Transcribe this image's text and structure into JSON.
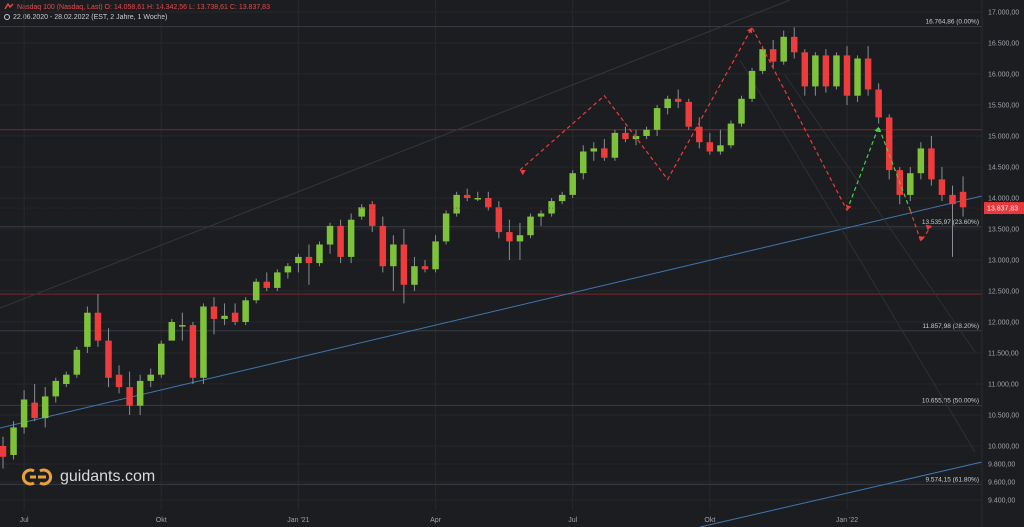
{
  "header": {
    "title_line": "Nasdaq 100 (Nasdaq, Last) O: 14.058,61 H: 14.342,56 L: 13.738,61 C: 13.837,83",
    "range_line": "22.06.2020 - 28.02.2022 (EST, 2 Jahre, 1 Woche)"
  },
  "logo": {
    "text": "guidants.com"
  },
  "colors": {
    "background": "#1c1d20",
    "up": "#7dc23a",
    "down": "#ee3b3b",
    "price_tag": "#e8383b",
    "fib_line": "#3a3d44",
    "resistance": "#7a2a2a",
    "trendline": "#3e78b0"
  },
  "chart_data": {
    "type": "candlestick",
    "instrument": "Nasdaq 100 (Nasdaq, Last)",
    "period": "22.06.2020 - 28.02.2022",
    "ylim": [
      9200,
      17200
    ],
    "y_ticks": [
      9400,
      9600,
      9800,
      10000,
      10500,
      11000,
      11500,
      12000,
      12500,
      13000,
      13500,
      14000,
      14500,
      15000,
      15500,
      16000,
      16500,
      17000
    ],
    "y_tick_labels": [
      "9.400,00",
      "9.600,00",
      "9.800,00",
      "10.000,00",
      "10.500,00",
      "11.000,00",
      "11.500,00",
      "12.000,00",
      "12.500,00",
      "13.000,00",
      "13.500,00",
      "14.000,00",
      "14.500,00",
      "15.000,00",
      "15.500,00",
      "16.000,00",
      "16.500,00",
      "17.000,00"
    ],
    "x_ticks": [
      {
        "week": 2,
        "label": "Jul"
      },
      {
        "week": 15,
        "label": "Okt"
      },
      {
        "week": 28,
        "label": "Jan '21"
      },
      {
        "week": 41,
        "label": "Apr"
      },
      {
        "week": 54,
        "label": "Jul"
      },
      {
        "week": 67,
        "label": "Okt"
      },
      {
        "week": 80,
        "label": "Jan '22"
      }
    ],
    "last_price": {
      "value": 13837.83,
      "label": "13.837,83"
    },
    "fibonacci": [
      {
        "value": 16764.86,
        "label": "16.764,86 (0.00%)"
      },
      {
        "value": 13535.97,
        "label": "13.535,97 (23.60%)"
      },
      {
        "value": 11857.98,
        "label": "11.857,98 (38.20%)"
      },
      {
        "value": 10655.05,
        "label": "10.655,05 (50.00%)"
      },
      {
        "value": 9574.15,
        "label": "9.574,15 (61.80%)"
      }
    ],
    "horizontal_lines": [
      15100,
      12450
    ],
    "candles": [
      [
        10000,
        10150,
        9750,
        9880
      ],
      [
        9900,
        10400,
        9850,
        10300
      ],
      [
        10300,
        10900,
        10200,
        10750
      ],
      [
        10700,
        11000,
        10400,
        10450
      ],
      [
        10450,
        10950,
        10300,
        10800
      ],
      [
        10800,
        11100,
        10700,
        11050
      ],
      [
        11000,
        11200,
        10950,
        11150
      ],
      [
        11150,
        11600,
        11100,
        11550
      ],
      [
        11600,
        12250,
        11500,
        12150
      ],
      [
        12150,
        12450,
        11600,
        11700
      ],
      [
        11700,
        11900,
        10950,
        11100
      ],
      [
        11150,
        11300,
        10850,
        10950
      ],
      [
        10950,
        11200,
        10500,
        10650
      ],
      [
        10650,
        11150,
        10500,
        11050
      ],
      [
        11050,
        11250,
        10950,
        11150
      ],
      [
        11150,
        11700,
        11100,
        11650
      ],
      [
        11700,
        12050,
        11700,
        12000
      ],
      [
        11950,
        12150,
        11700,
        11950
      ],
      [
        11950,
        12000,
        11000,
        11100
      ],
      [
        11100,
        12300,
        11000,
        12250
      ],
      [
        12250,
        12400,
        11800,
        12050
      ],
      [
        12050,
        12300,
        11950,
        12100
      ],
      [
        12150,
        12300,
        11950,
        12000
      ],
      [
        12000,
        12400,
        11950,
        12350
      ],
      [
        12350,
        12700,
        12300,
        12650
      ],
      [
        12650,
        12800,
        12500,
        12550
      ],
      [
        12550,
        12850,
        12500,
        12800
      ],
      [
        12800,
        12950,
        12700,
        12900
      ],
      [
        12950,
        13100,
        12800,
        13050
      ],
      [
        13050,
        13250,
        12600,
        12950
      ],
      [
        12950,
        13300,
        12900,
        13250
      ],
      [
        13250,
        13600,
        13100,
        13550
      ],
      [
        13550,
        13650,
        12950,
        13050
      ],
      [
        13050,
        13750,
        12950,
        13650
      ],
      [
        13700,
        13900,
        13650,
        13850
      ],
      [
        13900,
        13950,
        13450,
        13550
      ],
      [
        13550,
        13700,
        12800,
        12900
      ],
      [
        12900,
        13400,
        12500,
        13250
      ],
      [
        13250,
        13500,
        12300,
        12600
      ],
      [
        12600,
        13050,
        12500,
        12900
      ],
      [
        12900,
        13000,
        12800,
        12850
      ],
      [
        12850,
        13400,
        12800,
        13300
      ],
      [
        13300,
        13800,
        13250,
        13750
      ],
      [
        13750,
        14100,
        13700,
        14050
      ],
      [
        14050,
        14150,
        13950,
        14000
      ],
      [
        14000,
        14100,
        13950,
        14000
      ],
      [
        14000,
        14100,
        13800,
        13850
      ],
      [
        13850,
        13950,
        13350,
        13450
      ],
      [
        13450,
        13650,
        13000,
        13300
      ],
      [
        13300,
        13600,
        13000,
        13400
      ],
      [
        13400,
        13750,
        13350,
        13700
      ],
      [
        13700,
        13800,
        13550,
        13750
      ],
      [
        13750,
        14000,
        13700,
        13950
      ],
      [
        13950,
        14100,
        13900,
        14050
      ],
      [
        14050,
        14450,
        14000,
        14400
      ],
      [
        14400,
        14850,
        14300,
        14750
      ],
      [
        14750,
        14900,
        14600,
        14800
      ],
      [
        14800,
        14950,
        14600,
        14650
      ],
      [
        14650,
        15100,
        14600,
        15050
      ],
      [
        15050,
        15150,
        14900,
        14950
      ],
      [
        14950,
        15100,
        14850,
        15000
      ],
      [
        15000,
        15150,
        14950,
        15100
      ],
      [
        15100,
        15500,
        15000,
        15450
      ],
      [
        15450,
        15650,
        15350,
        15600
      ],
      [
        15600,
        15750,
        15450,
        15550
      ],
      [
        15550,
        15600,
        15100,
        15150
      ],
      [
        15150,
        15300,
        14800,
        14900
      ],
      [
        14900,
        15050,
        14700,
        14750
      ],
      [
        14750,
        15100,
        14700,
        14850
      ],
      [
        14850,
        15250,
        14800,
        15200
      ],
      [
        15200,
        15650,
        15150,
        15600
      ],
      [
        15600,
        16100,
        15550,
        16050
      ],
      [
        16050,
        16450,
        16000,
        16400
      ],
      [
        16400,
        16550,
        16100,
        16200
      ],
      [
        16200,
        16700,
        16150,
        16600
      ],
      [
        16600,
        16750,
        16250,
        16350
      ],
      [
        16350,
        16400,
        15650,
        15800
      ],
      [
        15800,
        16350,
        15650,
        16300
      ],
      [
        16300,
        16400,
        15700,
        15800
      ],
      [
        15800,
        16350,
        15750,
        16300
      ],
      [
        16300,
        16450,
        15500,
        15650
      ],
      [
        15650,
        16300,
        15550,
        16250
      ],
      [
        16250,
        16450,
        15650,
        15750
      ],
      [
        15750,
        15850,
        15200,
        15300
      ],
      [
        15300,
        15350,
        14300,
        14450
      ],
      [
        14450,
        14500,
        13900,
        14050
      ],
      [
        14050,
        14500,
        13950,
        14400
      ],
      [
        14400,
        14900,
        14300,
        14800
      ],
      [
        14800,
        15000,
        14200,
        14300
      ],
      [
        14300,
        14500,
        13950,
        14050
      ],
      [
        14050,
        14200,
        13050,
        13900
      ],
      [
        14100,
        14350,
        13700,
        13850
      ]
    ],
    "zigzag_red": [
      [
        49,
        14450
      ],
      [
        57,
        15650
      ],
      [
        63,
        14300
      ],
      [
        71,
        16750
      ],
      [
        80,
        13800
      ]
    ],
    "zigzag_green": [
      [
        80,
        13800
      ],
      [
        83,
        15150
      ],
      [
        86,
        13800
      ]
    ],
    "arrow_red_tail": [
      [
        86,
        13800
      ],
      [
        87,
        13300
      ],
      [
        88,
        13550
      ]
    ]
  }
}
